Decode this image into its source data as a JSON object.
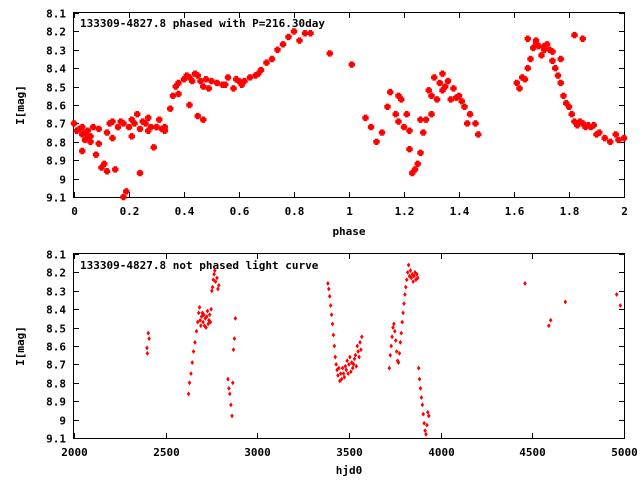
{
  "colors": {
    "points": "#ff0000",
    "axes": "#000000",
    "background": "#ffffff"
  },
  "chart_data": [
    {
      "type": "scatter",
      "title": "133309-4827.8 phased with P=216.30day",
      "xlabel": "phase",
      "ylabel": "I[mag]",
      "xlim": [
        0,
        2
      ],
      "ylim": [
        8.1,
        9.1
      ],
      "y_inverted": true,
      "marker": "cross",
      "xticks": [
        0,
        0.2,
        0.4,
        0.6,
        0.8,
        1,
        1.2,
        1.4,
        1.6,
        1.8,
        2
      ],
      "xtick_labels": [
        "0",
        "0.2",
        "0.4",
        "0.6",
        "0.8",
        "1",
        "1.2",
        "1.4",
        "1.6",
        "1.8",
        "2"
      ],
      "yticks": [
        8.1,
        8.2,
        8.3,
        8.4,
        8.5,
        8.6,
        8.7,
        8.8,
        8.9,
        9.0,
        9.1
      ],
      "ytick_labels": [
        "8.1",
        "8.2",
        "8.3",
        "8.4",
        "8.5",
        "8.6",
        "8.7",
        "8.8",
        "8.9",
        "9",
        "9.1"
      ],
      "x": [
        0.0,
        0.01,
        0.02,
        0.03,
        0.03,
        0.04,
        0.04,
        0.05,
        0.05,
        0.06,
        0.07,
        0.08,
        0.09,
        0.1,
        0.11,
        0.12,
        0.13,
        0.14,
        0.15,
        0.16,
        0.17,
        0.18,
        0.19,
        0.2,
        0.21,
        0.22,
        0.23,
        0.24,
        0.25,
        0.26,
        0.27,
        0.28,
        0.29,
        0.3,
        0.31,
        0.32,
        0.33,
        0.35,
        0.36,
        0.37,
        0.38,
        0.4,
        0.41,
        0.42,
        0.43,
        0.44,
        0.45,
        0.46,
        0.47,
        0.48,
        0.5,
        0.52,
        0.54,
        0.56,
        0.58,
        0.6,
        0.62,
        0.64,
        0.66,
        0.67,
        0.68,
        0.7,
        0.72,
        0.74,
        0.76,
        0.78,
        0.8,
        0.82,
        0.84,
        0.86,
        0.93,
        1.01,
        1.06,
        1.08,
        1.1,
        1.12,
        1.14,
        1.15,
        1.17,
        1.18,
        1.19,
        1.2,
        1.21,
        1.22,
        1.23,
        1.24,
        1.25,
        1.26,
        1.27,
        1.28,
        1.29,
        1.3,
        1.31,
        1.32,
        1.33,
        1.34,
        1.35,
        1.36,
        1.38,
        1.39,
        1.4,
        1.41,
        1.42,
        1.44,
        1.46,
        1.47,
        1.61,
        1.62,
        1.63,
        1.64,
        1.65,
        1.66,
        1.67,
        1.68,
        1.69,
        1.7,
        1.71,
        1.72,
        1.73,
        1.74,
        1.75,
        1.76,
        1.77,
        1.78,
        1.79,
        1.8,
        1.81,
        1.82,
        1.83,
        1.84,
        1.85,
        1.86,
        1.87,
        1.88,
        1.89,
        1.9,
        1.91,
        1.93,
        1.95,
        1.97,
        1.98,
        2.0,
        0.03,
        0.06,
        0.09,
        0.12,
        0.14,
        0.18,
        0.21,
        0.24,
        0.27,
        0.3,
        0.33,
        0.38,
        0.42,
        0.45,
        0.47,
        0.49,
        0.55,
        0.59,
        0.61,
        1.18,
        1.22,
        1.26,
        1.3,
        1.34,
        1.37,
        1.43,
        1.65,
        1.68,
        1.71,
        1.74,
        1.77,
        1.82,
        1.85
      ],
      "y": [
        8.7,
        8.74,
        8.73,
        8.76,
        8.72,
        8.79,
        8.75,
        8.77,
        8.74,
        8.8,
        8.72,
        8.87,
        8.81,
        8.94,
        8.92,
        8.96,
        8.7,
        8.78,
        8.95,
        8.72,
        8.69,
        9.1,
        9.07,
        8.72,
        8.68,
        8.7,
        8.65,
        8.73,
        8.69,
        8.7,
        8.74,
        8.72,
        8.83,
        8.72,
        8.68,
        8.73,
        8.72,
        8.62,
        8.55,
        8.5,
        8.48,
        8.46,
        8.44,
        8.45,
        8.47,
        8.43,
        8.44,
        8.47,
        8.5,
        8.46,
        8.47,
        8.48,
        8.49,
        8.45,
        8.51,
        8.47,
        8.47,
        8.45,
        8.44,
        8.43,
        8.41,
        8.37,
        8.35,
        8.3,
        8.27,
        8.23,
        8.2,
        8.25,
        8.21,
        8.21,
        8.32,
        8.38,
        8.67,
        8.72,
        8.8,
        8.75,
        8.61,
        8.53,
        8.65,
        8.55,
        8.57,
        8.72,
        8.65,
        8.74,
        8.97,
        8.95,
        8.92,
        8.86,
        8.75,
        8.68,
        8.52,
        8.65,
        8.45,
        8.57,
        8.48,
        8.43,
        8.5,
        8.47,
        8.51,
        8.56,
        8.55,
        8.58,
        8.61,
        8.65,
        8.7,
        8.76,
        8.48,
        8.51,
        8.45,
        8.46,
        8.4,
        8.35,
        8.29,
        8.25,
        8.28,
        8.33,
        8.3,
        8.27,
        8.3,
        8.36,
        8.4,
        8.44,
        8.48,
        8.55,
        8.59,
        8.61,
        8.65,
        8.69,
        8.71,
        8.69,
        8.7,
        8.72,
        8.71,
        8.72,
        8.71,
        8.76,
        8.75,
        8.78,
        8.8,
        8.76,
        8.79,
        8.78,
        8.85,
        8.77,
        8.73,
        8.75,
        8.69,
        8.7,
        8.77,
        8.97,
        8.67,
        8.72,
        8.74,
        8.54,
        8.6,
        8.66,
        8.68,
        8.51,
        8.49,
        8.46,
        8.49,
        8.69,
        8.84,
        8.68,
        8.55,
        8.52,
        8.57,
        8.7,
        8.24,
        8.27,
        8.28,
        8.31,
        8.35,
        8.22,
        8.24
      ]
    },
    {
      "type": "scatter",
      "title": "133309-4827.8 not phased light curve",
      "xlabel": "hjd0",
      "ylabel": "I[mag]",
      "xlim": [
        2000,
        5000
      ],
      "ylim": [
        8.1,
        9.1
      ],
      "y_inverted": true,
      "marker": "diamond",
      "xticks": [
        2000,
        2500,
        3000,
        3500,
        4000,
        4500,
        5000
      ],
      "xtick_labels": [
        "2000",
        "2500",
        "3000",
        "3500",
        "4000",
        "4500",
        "5000"
      ],
      "yticks": [
        8.1,
        8.2,
        8.3,
        8.4,
        8.5,
        8.6,
        8.7,
        8.8,
        8.9,
        9.0,
        9.1
      ],
      "ytick_labels": [
        "8.1",
        "8.2",
        "8.3",
        "8.4",
        "8.5",
        "8.6",
        "8.7",
        "8.8",
        "8.9",
        "9",
        "9.1"
      ],
      "x": [
        2398,
        2400,
        2405,
        2410,
        2625,
        2630,
        2638,
        2645,
        2652,
        2660,
        2668,
        2675,
        2680,
        2685,
        2688,
        2692,
        2696,
        2700,
        2704,
        2708,
        2712,
        2716,
        2720,
        2724,
        2728,
        2732,
        2736,
        2740,
        2744,
        2748,
        2752,
        2756,
        2760,
        2764,
        2768,
        2772,
        2780,
        2785,
        2790,
        2840,
        2845,
        2850,
        2856,
        2862,
        2866,
        2870,
        2875,
        2880,
        3385,
        3390,
        3395,
        3400,
        3405,
        3410,
        3415,
        3420,
        3425,
        3430,
        3435,
        3440,
        3445,
        3450,
        3455,
        3460,
        3465,
        3470,
        3475,
        3480,
        3485,
        3490,
        3495,
        3500,
        3505,
        3510,
        3515,
        3520,
        3525,
        3530,
        3535,
        3540,
        3545,
        3550,
        3555,
        3560,
        3565,
        3570,
        3720,
        3725,
        3730,
        3735,
        3740,
        3745,
        3750,
        3755,
        3760,
        3765,
        3770,
        3775,
        3780,
        3785,
        3790,
        3795,
        3800,
        3805,
        3810,
        3815,
        3820,
        3825,
        3830,
        3835,
        3840,
        3845,
        3850,
        3855,
        3860,
        3865,
        3870,
        3875,
        3880,
        3885,
        3890,
        3895,
        3900,
        3905,
        3910,
        3915,
        3920,
        3925,
        3930,
        3935,
        4460,
        4590,
        4600,
        4680,
        4960,
        4980
      ],
      "y": [
        8.61,
        8.64,
        8.53,
        8.56,
        8.86,
        8.8,
        8.75,
        8.69,
        8.63,
        8.58,
        8.52,
        8.47,
        8.42,
        8.39,
        8.46,
        8.49,
        8.44,
        8.42,
        8.47,
        8.43,
        8.49,
        8.45,
        8.5,
        8.44,
        8.41,
        8.48,
        8.46,
        8.43,
        8.47,
        8.4,
        8.3,
        8.28,
        8.24,
        8.21,
        8.19,
        8.25,
        8.23,
        8.29,
        8.27,
        8.78,
        8.83,
        8.86,
        8.92,
        8.98,
        8.8,
        8.62,
        8.56,
        8.45,
        8.26,
        8.29,
        8.33,
        8.38,
        8.43,
        8.48,
        8.54,
        8.6,
        8.66,
        8.7,
        8.73,
        8.76,
        8.72,
        8.79,
        8.75,
        8.78,
        8.72,
        8.75,
        8.77,
        8.71,
        8.73,
        8.68,
        8.75,
        8.7,
        8.66,
        8.74,
        8.69,
        8.72,
        8.7,
        8.67,
        8.65,
        8.71,
        8.6,
        8.63,
        8.66,
        8.58,
        8.62,
        8.55,
        8.72,
        8.65,
        8.6,
        8.55,
        8.5,
        8.48,
        8.52,
        8.57,
        8.63,
        8.68,
        8.69,
        8.64,
        8.58,
        8.53,
        8.47,
        8.42,
        8.37,
        8.32,
        8.28,
        8.24,
        8.2,
        8.16,
        8.22,
        8.19,
        8.23,
        8.21,
        8.25,
        8.22,
        8.2,
        8.24,
        8.21,
        8.23,
        8.72,
        8.78,
        8.83,
        8.88,
        8.92,
        8.97,
        9.02,
        9.06,
        9.08,
        9.03,
        8.96,
        8.98,
        8.26,
        8.49,
        8.46,
        8.36,
        8.32,
        8.38
      ]
    }
  ]
}
